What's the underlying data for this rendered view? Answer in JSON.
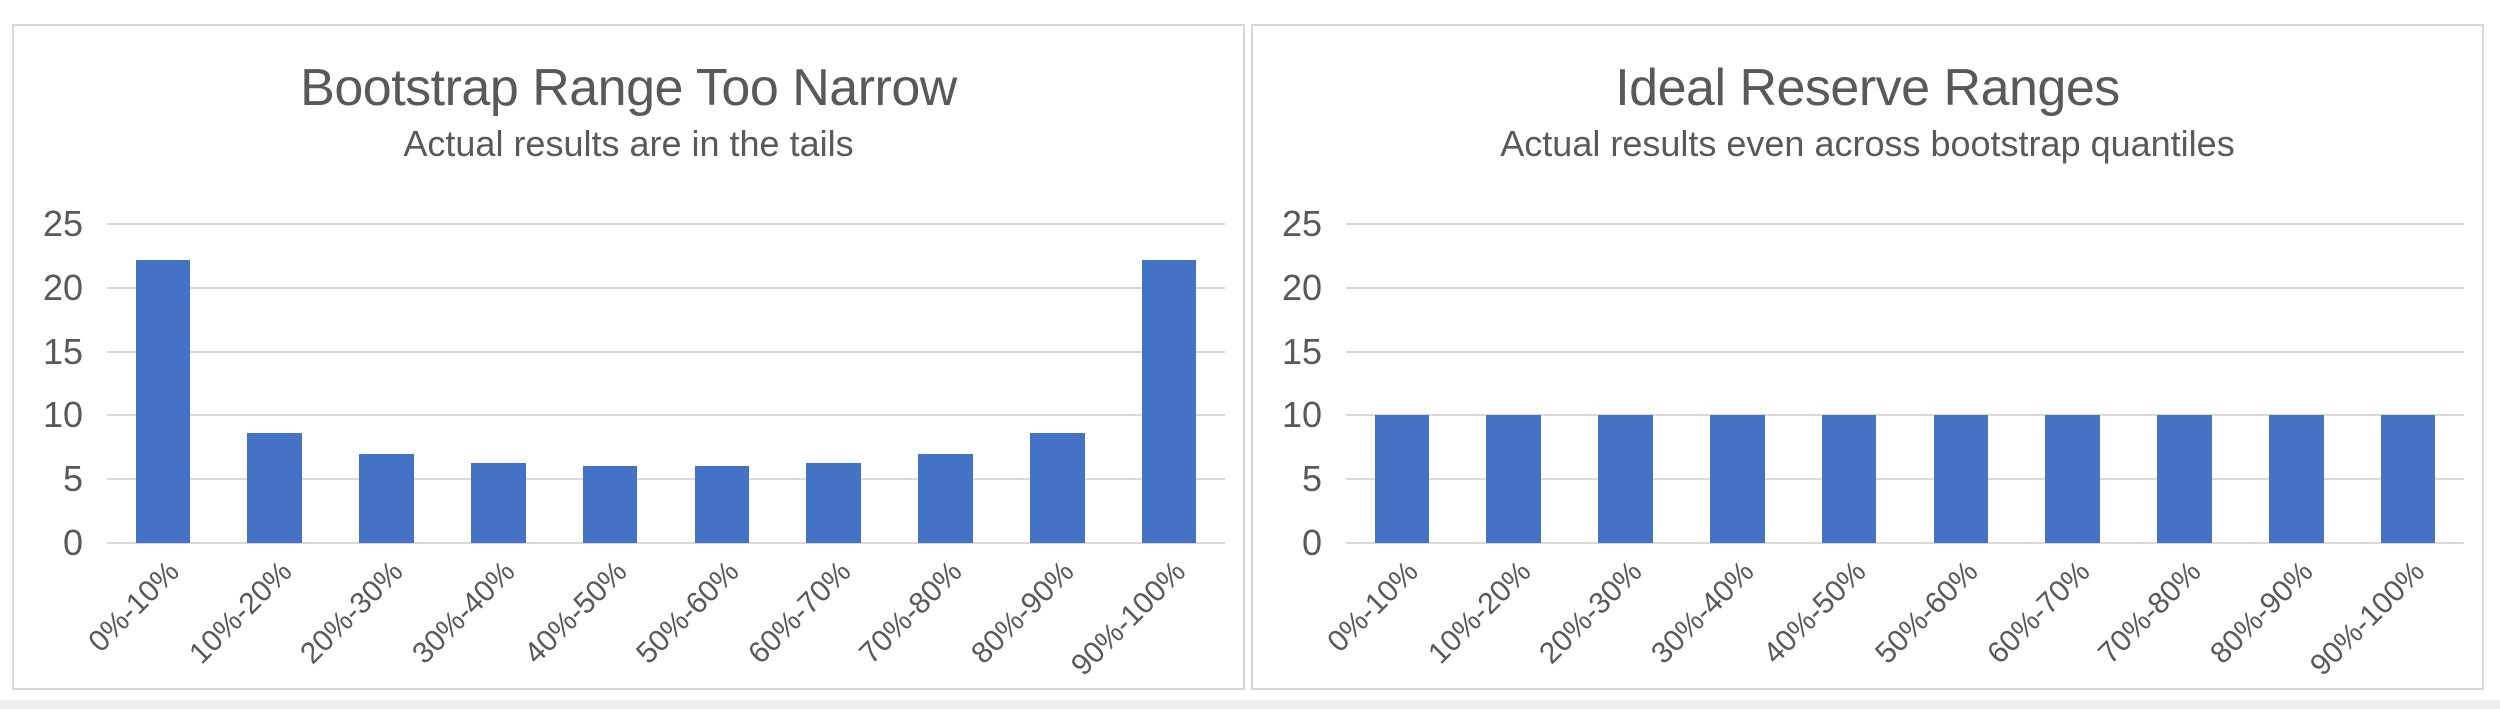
{
  "colors": {
    "bar": "#4472C4",
    "gridline": "#D9D9D9",
    "axis-text": "#595959",
    "title-text": "#595959",
    "panel-border": "#D8D8D8",
    "page-edge": "#EDEDED"
  },
  "chart_data": [
    {
      "type": "bar",
      "title": "Bootstrap Range Too Narrow",
      "subtitle": "Actual results are in the tails",
      "categories": [
        "0%-10%",
        "10%-20%",
        "20%-30%",
        "30%-40%",
        "40%-50%",
        "50%-60%",
        "60%-70%",
        "70%-80%",
        "80%-90%",
        "90%-100%"
      ],
      "values": [
        22.2,
        8.6,
        7,
        6.3,
        6,
        6,
        6.3,
        7,
        8.6,
        22.2
      ],
      "xlabel": "",
      "ylabel": "",
      "ylim": [
        0,
        25
      ],
      "yticks": [
        0,
        5,
        10,
        15,
        20,
        25
      ],
      "grid": true,
      "legend": "none",
      "bar_color": "#4472C4"
    },
    {
      "type": "bar",
      "title": "Ideal Reserve Ranges",
      "subtitle": "Actual results even across bootstrap quantiles",
      "categories": [
        "0%-10%",
        "10%-20%",
        "20%-30%",
        "30%-40%",
        "40%-50%",
        "50%-60%",
        "60%-70%",
        "70%-80%",
        "80%-90%",
        "90%-100%"
      ],
      "values": [
        10,
        10,
        10,
        10,
        10,
        10,
        10,
        10,
        10,
        10
      ],
      "xlabel": "",
      "ylabel": "",
      "ylim": [
        0,
        25
      ],
      "yticks": [
        0,
        5,
        10,
        15,
        20,
        25
      ],
      "grid": true,
      "legend": "none",
      "bar_color": "#4472C4"
    }
  ]
}
